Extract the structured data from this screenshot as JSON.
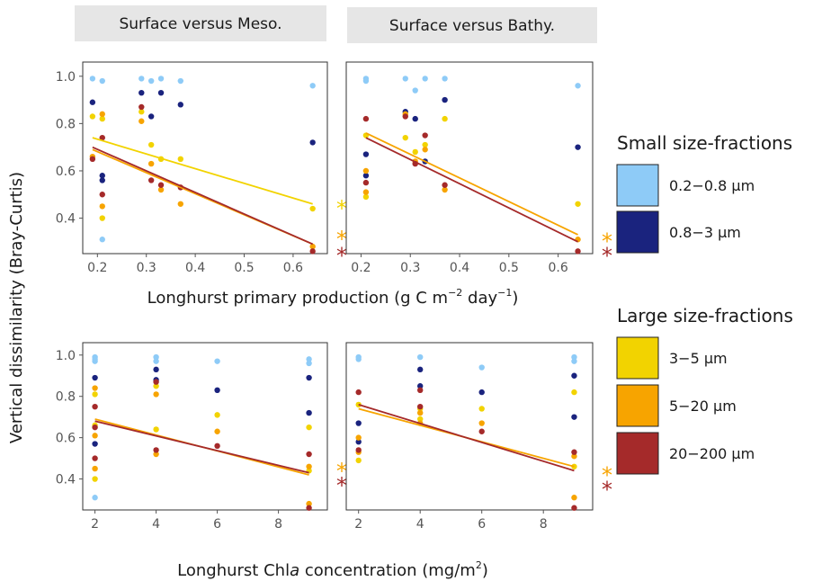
{
  "figure": {
    "ylabel": "Vertical dissimilarity (Bray-Curtis)",
    "top_xlabel": {
      "main": "Longhurst primary production (g C m",
      "sup1": "−2",
      "mid": " day",
      "sup2": "−1",
      "end": ")"
    },
    "bottom_xlabel": {
      "pre": "Longhurst  Chl",
      "ital": "a",
      "post": " concentration (mg/m",
      "sup": "2",
      "end": ")"
    }
  },
  "legend": {
    "small_title": "Small size-fractions",
    "large_title": "Large size-fractions",
    "items": [
      {
        "label": "0.2−0.8 µm",
        "color": "#8ecbf7"
      },
      {
        "label": "0.8−3 µm",
        "color": "#1a237e"
      },
      {
        "label": "3−5  µm",
        "color": "#f2d300"
      },
      {
        "label": "5−20 µm",
        "color": "#f7a400"
      },
      {
        "label": "20−200 µm",
        "color": "#a52a2a"
      }
    ]
  },
  "chart_data": [
    {
      "type": "scatter",
      "title": "Surface versus Meso.",
      "xlabel": "Longhurst primary production (g C m−2 day−1)",
      "ylabel": "Vertical dissimilarity (Bray-Curtis)",
      "xlim": [
        0.17,
        0.67
      ],
      "ylim": [
        0.25,
        1.06
      ],
      "xticks": [
        "0.2",
        "0.3",
        "0.4",
        "0.5",
        "0.6"
      ],
      "yticks": [
        "0.4",
        "0.6",
        "0.8",
        "1.0"
      ],
      "series": [
        {
          "name": "0.2−0.8 µm",
          "points": [
            [
              0.19,
              0.99
            ],
            [
              0.21,
              0.98
            ],
            [
              0.21,
              0.31
            ],
            [
              0.29,
              0.99
            ],
            [
              0.31,
              0.98
            ],
            [
              0.33,
              0.99
            ],
            [
              0.37,
              0.98
            ],
            [
              0.64,
              0.96
            ]
          ]
        },
        {
          "name": "0.8−3 µm",
          "points": [
            [
              0.19,
              0.89
            ],
            [
              0.21,
              0.58
            ],
            [
              0.21,
              0.56
            ],
            [
              0.29,
              0.93
            ],
            [
              0.31,
              0.83
            ],
            [
              0.33,
              0.93
            ],
            [
              0.37,
              0.88
            ],
            [
              0.64,
              0.72
            ]
          ]
        },
        {
          "name": "3−5  µm",
          "points": [
            [
              0.19,
              0.83
            ],
            [
              0.21,
              0.82
            ],
            [
              0.21,
              0.4
            ],
            [
              0.29,
              0.85
            ],
            [
              0.31,
              0.71
            ],
            [
              0.33,
              0.65
            ],
            [
              0.37,
              0.65
            ],
            [
              0.64,
              0.44
            ]
          ]
        },
        {
          "name": "5−20 µm",
          "points": [
            [
              0.19,
              0.66
            ],
            [
              0.21,
              0.84
            ],
            [
              0.21,
              0.45
            ],
            [
              0.29,
              0.81
            ],
            [
              0.31,
              0.63
            ],
            [
              0.33,
              0.52
            ],
            [
              0.37,
              0.46
            ],
            [
              0.64,
              0.28
            ]
          ]
        },
        {
          "name": "20−200 µm",
          "points": [
            [
              0.19,
              0.65
            ],
            [
              0.21,
              0.74
            ],
            [
              0.21,
              0.5
            ],
            [
              0.29,
              0.87
            ],
            [
              0.31,
              0.56
            ],
            [
              0.33,
              0.54
            ],
            [
              0.37,
              0.53
            ],
            [
              0.64,
              0.26
            ]
          ]
        }
      ],
      "fits": [
        {
          "series": "3−5  µm",
          "x": [
            0.19,
            0.64
          ],
          "y": [
            0.74,
            0.46
          ]
        },
        {
          "series": "5−20 µm",
          "x": [
            0.19,
            0.64
          ],
          "y": [
            0.69,
            0.29
          ]
        },
        {
          "series": "20−200 µm",
          "x": [
            0.19,
            0.64
          ],
          "y": [
            0.7,
            0.29
          ]
        }
      ],
      "significance": [
        {
          "series": "3−5  µm",
          "text": "*",
          "y": 0.46
        },
        {
          "series": "5−20 µm",
          "text": "*",
          "y": 0.33
        },
        {
          "series": "20−200 µm",
          "text": "*",
          "y": 0.26
        }
      ]
    },
    {
      "type": "scatter",
      "title": "Surface versus Bathy.",
      "xlabel": "Longhurst primary production (g C m−2 day−1)",
      "xlim": [
        0.17,
        0.67
      ],
      "ylim": [
        0.25,
        1.06
      ],
      "xticks": [
        "0.2",
        "0.3",
        "0.4",
        "0.5",
        "0.6"
      ],
      "yticks": [],
      "series": [
        {
          "name": "0.2−0.8 µm",
          "points": [
            [
              0.21,
              0.99
            ],
            [
              0.21,
              0.98
            ],
            [
              0.29,
              0.99
            ],
            [
              0.31,
              0.94
            ],
            [
              0.33,
              0.99
            ],
            [
              0.37,
              0.99
            ],
            [
              0.64,
              0.96
            ]
          ]
        },
        {
          "name": "0.8−3 µm",
          "points": [
            [
              0.21,
              0.67
            ],
            [
              0.21,
              0.58
            ],
            [
              0.29,
              0.85
            ],
            [
              0.31,
              0.82
            ],
            [
              0.33,
              0.64
            ],
            [
              0.37,
              0.9
            ],
            [
              0.64,
              0.7
            ]
          ]
        },
        {
          "name": "3−5  µm",
          "points": [
            [
              0.21,
              0.75
            ],
            [
              0.21,
              0.49
            ],
            [
              0.29,
              0.74
            ],
            [
              0.31,
              0.68
            ],
            [
              0.33,
              0.71
            ],
            [
              0.37,
              0.82
            ],
            [
              0.64,
              0.46
            ]
          ]
        },
        {
          "name": "5−20 µm",
          "points": [
            [
              0.21,
              0.6
            ],
            [
              0.21,
              0.51
            ],
            [
              0.29,
              0.84
            ],
            [
              0.31,
              0.64
            ],
            [
              0.33,
              0.69
            ],
            [
              0.37,
              0.52
            ],
            [
              0.64,
              0.31
            ]
          ]
        },
        {
          "name": "20−200 µm",
          "points": [
            [
              0.21,
              0.82
            ],
            [
              0.21,
              0.55
            ],
            [
              0.29,
              0.83
            ],
            [
              0.31,
              0.63
            ],
            [
              0.33,
              0.75
            ],
            [
              0.37,
              0.54
            ],
            [
              0.64,
              0.26
            ]
          ]
        }
      ],
      "fits": [
        {
          "series": "5−20 µm",
          "x": [
            0.21,
            0.64
          ],
          "y": [
            0.76,
            0.33
          ]
        },
        {
          "series": "20−200 µm",
          "x": [
            0.21,
            0.64
          ],
          "y": [
            0.74,
            0.3
          ]
        }
      ],
      "significance": [
        {
          "series": "5−20 µm",
          "text": "*",
          "y": 0.32
        },
        {
          "series": "20−200 µm",
          "text": "*",
          "y": 0.26
        }
      ]
    },
    {
      "type": "scatter",
      "xlabel": "Longhurst Chla concentration (mg/m2)",
      "ylabel": "Vertical dissimilarity (Bray-Curtis)",
      "xlim": [
        1.6,
        9.6
      ],
      "ylim": [
        0.25,
        1.06
      ],
      "xticks": [
        "2",
        "4",
        "6",
        "8"
      ],
      "yticks": [
        "0.4",
        "0.6",
        "0.8",
        "1.0"
      ],
      "series": [
        {
          "name": "0.2−0.8 µm",
          "points": [
            [
              2,
              0.99
            ],
            [
              2,
              0.98
            ],
            [
              2,
              0.97
            ],
            [
              2,
              0.31
            ],
            [
              4,
              0.99
            ],
            [
              4,
              0.97
            ],
            [
              6,
              0.97
            ],
            [
              9,
              0.98
            ],
            [
              9,
              0.96
            ]
          ]
        },
        {
          "name": "0.8−3 µm",
          "points": [
            [
              2,
              0.89
            ],
            [
              2,
              0.57
            ],
            [
              4,
              0.93
            ],
            [
              4,
              0.88
            ],
            [
              6,
              0.83
            ],
            [
              9,
              0.89
            ],
            [
              9,
              0.72
            ]
          ]
        },
        {
          "name": "3−5  µm",
          "points": [
            [
              2,
              0.81
            ],
            [
              2,
              0.66
            ],
            [
              2,
              0.4
            ],
            [
              4,
              0.85
            ],
            [
              4,
              0.64
            ],
            [
              6,
              0.71
            ],
            [
              9,
              0.65
            ],
            [
              9,
              0.44
            ]
          ]
        },
        {
          "name": "5−20 µm",
          "points": [
            [
              2,
              0.84
            ],
            [
              2,
              0.61
            ],
            [
              2,
              0.45
            ],
            [
              4,
              0.81
            ],
            [
              4,
              0.52
            ],
            [
              6,
              0.63
            ],
            [
              9,
              0.46
            ],
            [
              9,
              0.28
            ]
          ]
        },
        {
          "name": "20−200 µm",
          "points": [
            [
              2,
              0.75
            ],
            [
              2,
              0.65
            ],
            [
              2,
              0.5
            ],
            [
              4,
              0.87
            ],
            [
              4,
              0.54
            ],
            [
              6,
              0.56
            ],
            [
              9,
              0.52
            ],
            [
              9,
              0.26
            ]
          ]
        }
      ],
      "fits": [
        {
          "series": "5−20 µm",
          "x": [
            2,
            9
          ],
          "y": [
            0.69,
            0.42
          ]
        },
        {
          "series": "20−200 µm",
          "x": [
            2,
            9
          ],
          "y": [
            0.68,
            0.43
          ]
        }
      ],
      "significance": [
        {
          "series": "5−20 µm",
          "text": "*",
          "y": 0.46
        },
        {
          "series": "20−200 µm",
          "text": "*",
          "y": 0.39
        }
      ]
    },
    {
      "type": "scatter",
      "xlabel": "Longhurst Chla concentration (mg/m2)",
      "xlim": [
        1.6,
        9.6
      ],
      "ylim": [
        0.25,
        1.06
      ],
      "xticks": [
        "2",
        "4",
        "6",
        "8"
      ],
      "yticks": [],
      "series": [
        {
          "name": "0.2−0.8 µm",
          "points": [
            [
              2,
              0.99
            ],
            [
              2,
              0.98
            ],
            [
              4,
              0.99
            ],
            [
              6,
              0.94
            ],
            [
              9,
              0.99
            ],
            [
              9,
              0.97
            ]
          ]
        },
        {
          "name": "0.8−3 µm",
          "points": [
            [
              2,
              0.67
            ],
            [
              2,
              0.58
            ],
            [
              4,
              0.93
            ],
            [
              4,
              0.85
            ],
            [
              6,
              0.82
            ],
            [
              9,
              0.9
            ],
            [
              9,
              0.7
            ]
          ]
        },
        {
          "name": "3−5  µm",
          "points": [
            [
              2,
              0.76
            ],
            [
              2,
              0.49
            ],
            [
              4,
              0.74
            ],
            [
              4,
              0.69
            ],
            [
              6,
              0.74
            ],
            [
              9,
              0.82
            ],
            [
              9,
              0.46
            ]
          ]
        },
        {
          "name": "5−20 µm",
          "points": [
            [
              2,
              0.6
            ],
            [
              2,
              0.53
            ],
            [
              4,
              0.72
            ],
            [
              4,
              0.67
            ],
            [
              6,
              0.67
            ],
            [
              9,
              0.51
            ],
            [
              9,
              0.31
            ]
          ]
        },
        {
          "name": "20−200 µm",
          "points": [
            [
              2,
              0.82
            ],
            [
              2,
              0.54
            ],
            [
              4,
              0.83
            ],
            [
              4,
              0.75
            ],
            [
              6,
              0.63
            ],
            [
              9,
              0.53
            ],
            [
              9,
              0.26
            ]
          ]
        }
      ],
      "fits": [
        {
          "series": "5−20 µm",
          "x": [
            2,
            9
          ],
          "y": [
            0.74,
            0.46
          ]
        },
        {
          "series": "20−200 µm",
          "x": [
            2,
            9
          ],
          "y": [
            0.76,
            0.44
          ]
        }
      ],
      "significance": [
        {
          "series": "5−20 µm",
          "text": "*",
          "y": 0.44
        },
        {
          "series": "20−200 µm",
          "text": "*",
          "y": 0.37
        }
      ]
    }
  ]
}
